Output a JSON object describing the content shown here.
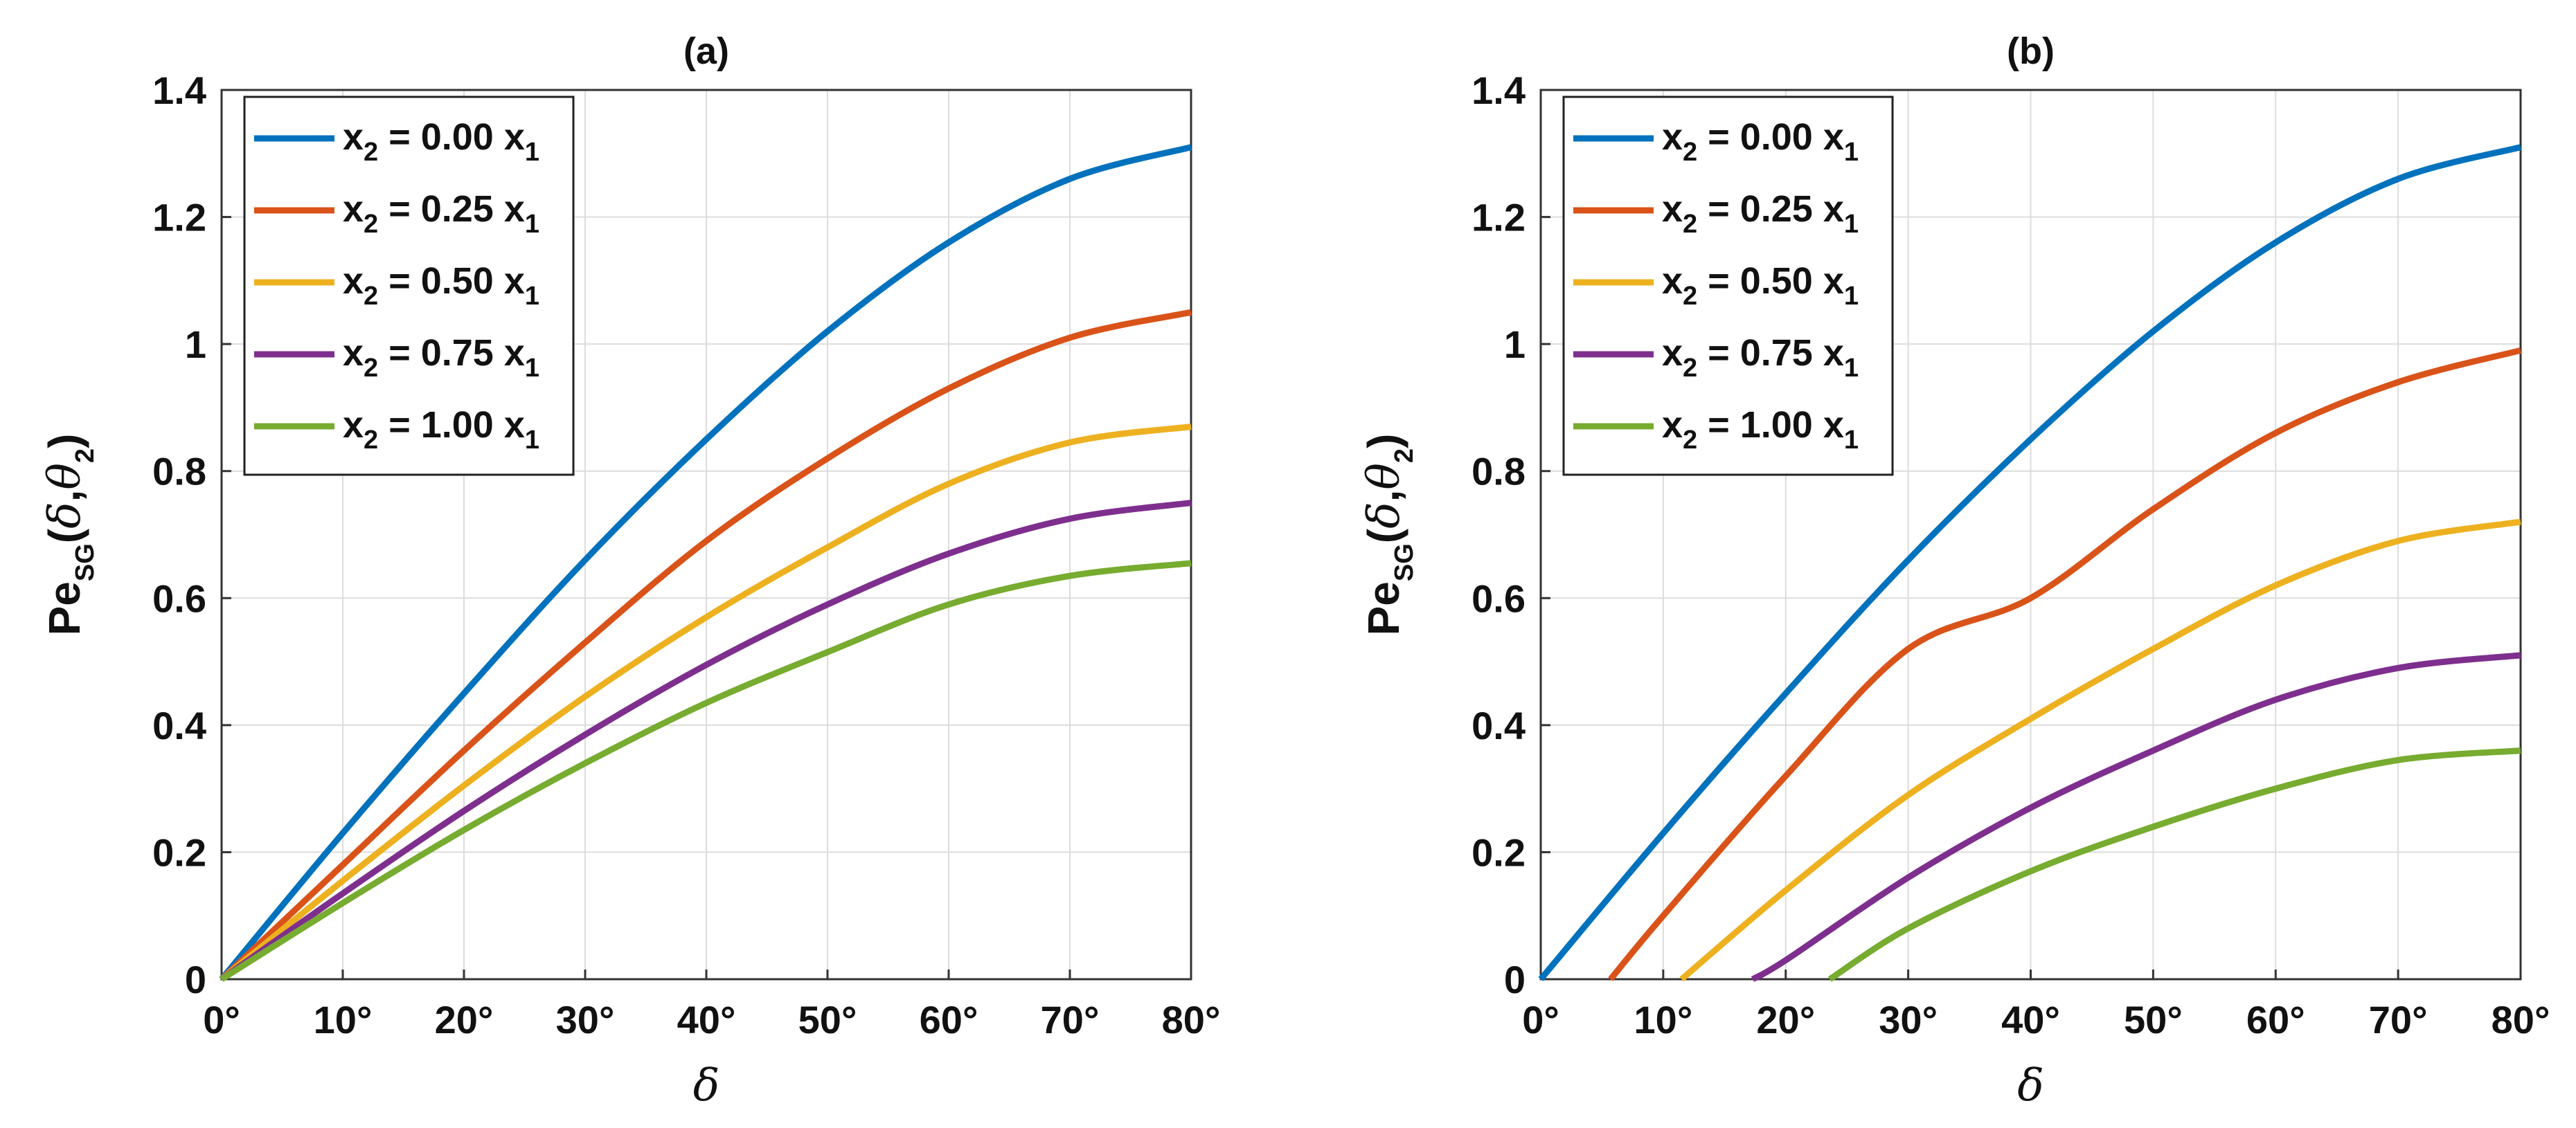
{
  "chart_data": [
    {
      "type": "line",
      "title": "(a)",
      "xlabel": "δ",
      "ylabel": "Pe_SG(δ,θ_2)",
      "xlim": [
        0,
        80
      ],
      "ylim": [
        0,
        1.4
      ],
      "xticks": [
        0,
        10,
        20,
        30,
        40,
        50,
        60,
        70,
        80
      ],
      "xtick_labels": [
        "0°",
        "10°",
        "20°",
        "30°",
        "40°",
        "50°",
        "60°",
        "70°",
        "80°"
      ],
      "yticks": [
        0,
        0.2,
        0.4,
        0.6,
        0.8,
        1,
        1.2,
        1.4
      ],
      "ytick_labels": [
        "0",
        "0.2",
        "0.4",
        "0.6",
        "0.8",
        "1",
        "1.2",
        "1.4"
      ],
      "grid": true,
      "legend_position": "top-left",
      "series": [
        {
          "name": "x_2 = 0.00 x_1",
          "legend": {
            "a": "x",
            "a_sub": "2",
            "mid": " = 0.00 x",
            "b_sub": "1"
          },
          "color": "#0072BD",
          "x": [
            0,
            10,
            20,
            30,
            40,
            50,
            60,
            70,
            80
          ],
          "y": [
            0,
            0.23,
            0.45,
            0.66,
            0.85,
            1.02,
            1.16,
            1.26,
            1.31
          ]
        },
        {
          "name": "x_2 = 0.25 x_1",
          "legend": {
            "a": "x",
            "a_sub": "2",
            "mid": " = 0.25 x",
            "b_sub": "1"
          },
          "color": "#D95319",
          "x": [
            0,
            10,
            20,
            30,
            40,
            50,
            60,
            70,
            80
          ],
          "y": [
            0,
            0.18,
            0.36,
            0.53,
            0.69,
            0.82,
            0.93,
            1.01,
            1.05
          ]
        },
        {
          "name": "x_2 = 0.50 x_1",
          "legend": {
            "a": "x",
            "a_sub": "2",
            "mid": " = 0.50 x",
            "b_sub": "1"
          },
          "color": "#EDB120",
          "x": [
            0,
            10,
            20,
            30,
            40,
            50,
            60,
            70,
            80
          ],
          "y": [
            0,
            0.155,
            0.305,
            0.445,
            0.57,
            0.68,
            0.78,
            0.845,
            0.87
          ]
        },
        {
          "name": "x_2 = 0.75 x_1",
          "legend": {
            "a": "x",
            "a_sub": "2",
            "mid": " = 0.75 x",
            "b_sub": "1"
          },
          "color": "#7E2F8E",
          "x": [
            0,
            10,
            20,
            30,
            40,
            50,
            60,
            70,
            80
          ],
          "y": [
            0,
            0.135,
            0.265,
            0.385,
            0.495,
            0.59,
            0.67,
            0.725,
            0.75
          ]
        },
        {
          "name": "x_2 = 1.00 x_1",
          "legend": {
            "a": "x",
            "a_sub": "2",
            "mid": " = 1.00 x",
            "b_sub": "1"
          },
          "color": "#77AC30",
          "x": [
            0,
            10,
            20,
            30,
            40,
            50,
            60,
            70,
            80
          ],
          "y": [
            0,
            0.12,
            0.235,
            0.34,
            0.435,
            0.515,
            0.59,
            0.635,
            0.655
          ]
        }
      ]
    },
    {
      "type": "line",
      "title": "(b)",
      "xlabel": "δ",
      "ylabel": "Pe_SG(δ,θ_2)",
      "xlim": [
        0,
        80
      ],
      "ylim": [
        0,
        1.4
      ],
      "xticks": [
        0,
        10,
        20,
        30,
        40,
        50,
        60,
        70,
        80
      ],
      "xtick_labels": [
        "0°",
        "10°",
        "20°",
        "30°",
        "40°",
        "50°",
        "60°",
        "70°",
        "80°"
      ],
      "yticks": [
        0,
        0.2,
        0.4,
        0.6,
        0.8,
        1,
        1.2,
        1.4
      ],
      "ytick_labels": [
        "0",
        "0.2",
        "0.4",
        "0.6",
        "0.8",
        "1",
        "1.2",
        "1.4"
      ],
      "grid": true,
      "legend_position": "top-left",
      "series": [
        {
          "name": "x_2 = 0.00 x_1",
          "legend": {
            "a": "x",
            "a_sub": "2",
            "mid": " = 0.00 x",
            "b_sub": "1"
          },
          "color": "#0072BD",
          "x": [
            0,
            10,
            20,
            30,
            40,
            50,
            60,
            70,
            80
          ],
          "y": [
            0,
            0.23,
            0.45,
            0.66,
            0.85,
            1.02,
            1.16,
            1.26,
            1.31
          ]
        },
        {
          "name": "x_2 = 0.25 x_1",
          "legend": {
            "a": "x",
            "a_sub": "2",
            "mid": " = 0.25 x",
            "b_sub": "1"
          },
          "color": "#D95319",
          "x": [
            5.7,
            10,
            20,
            30,
            40,
            50,
            60,
            70,
            80
          ],
          "y": [
            0,
            0.1,
            0.32,
            0.52,
            0.6,
            0.74,
            0.86,
            0.94,
            0.99
          ]
        },
        {
          "name": "x_2 = 0.50 x_1",
          "legend": {
            "a": "x",
            "a_sub": "2",
            "mid": " = 0.50 x",
            "b_sub": "1"
          },
          "color": "#EDB120",
          "x": [
            11.5,
            20,
            30,
            40,
            50,
            60,
            70,
            80
          ],
          "y": [
            0,
            0.14,
            0.29,
            0.41,
            0.52,
            0.62,
            0.69,
            0.72
          ]
        },
        {
          "name": "x_2 = 0.75 x_1",
          "legend": {
            "a": "x",
            "a_sub": "2",
            "mid": " = 0.75 x",
            "b_sub": "1"
          },
          "color": "#7E2F8E",
          "x": [
            17.3,
            20,
            30,
            40,
            50,
            60,
            70,
            80
          ],
          "y": [
            0,
            0.03,
            0.16,
            0.27,
            0.36,
            0.44,
            0.49,
            0.51
          ]
        },
        {
          "name": "x_2 = 1.00 x_1",
          "legend": {
            "a": "x",
            "a_sub": "2",
            "mid": " = 1.00 x",
            "b_sub": "1"
          },
          "color": "#77AC30",
          "x": [
            23.6,
            30,
            40,
            50,
            60,
            70,
            80
          ],
          "y": [
            0,
            0.08,
            0.17,
            0.24,
            0.3,
            0.345,
            0.36
          ]
        }
      ]
    }
  ]
}
